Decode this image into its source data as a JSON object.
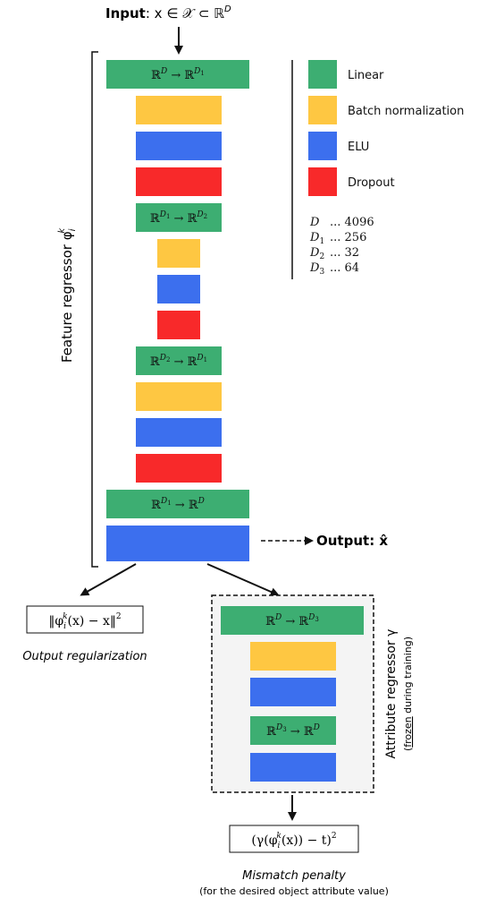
{
  "colors": {
    "linear": "#3DAE72",
    "batchnorm": "#FEC742",
    "elu": "#3C6FEE",
    "dropout": "#F8292A",
    "attribute_bg": "#F4F4F4"
  },
  "input": {
    "bold": "Input",
    "formula": ": x ∈ 𝒳 ⊂ ℝ",
    "sup": "D"
  },
  "feature_regressor": {
    "label": "Feature regressor φ",
    "sub": "i",
    "sup": "k"
  },
  "layers": {
    "l1": {
      "base": "ℝ",
      "sup1": "D",
      "arrow": " → ℝ",
      "sup2": "D",
      "sub2": "1"
    },
    "l2": {
      "base": "ℝ",
      "sup1": "D",
      "sub1": "1",
      "arrow": " → ℝ",
      "sup2": "D",
      "sub2": "2"
    },
    "l3": {
      "base": "ℝ",
      "sup1": "D",
      "sub1": "2",
      "arrow": " → ℝ",
      "sup2": "D",
      "sub2": "1"
    },
    "l4": {
      "base": "ℝ",
      "sup1": "D",
      "sub1": "1",
      "arrow": " → ℝ",
      "sup2": "D"
    },
    "a1": {
      "base": "ℝ",
      "sup1": "D",
      "arrow": " → ℝ",
      "sup2": "D",
      "sub2": "3"
    },
    "a2": {
      "base": "ℝ",
      "sup1": "D",
      "sub1": "3",
      "arrow": " → ℝ",
      "sup2": "D"
    }
  },
  "legend": [
    {
      "label": "Linear",
      "color": "linear"
    },
    {
      "label": "Batch normalization",
      "color": "batchnorm"
    },
    {
      "label": "ELU",
      "color": "elu"
    },
    {
      "label": "Dropout",
      "color": "dropout"
    }
  ],
  "dims": [
    {
      "name": "D",
      "sub": "",
      "value": "... 4096"
    },
    {
      "name": "D",
      "sub": "1",
      "value": "... 256"
    },
    {
      "name": "D",
      "sub": "2",
      "value": "... 32"
    },
    {
      "name": "D",
      "sub": "3",
      "value": "... 64"
    }
  ],
  "output": {
    "bold": "Output",
    "formula": ": x̂"
  },
  "regularization": {
    "formula_a": "‖φ",
    "sub": "i",
    "sup": "k",
    "formula_b": "(x) − x‖",
    "sup2": "2",
    "caption": "Output regularization"
  },
  "attribute_regressor": {
    "label": "Attribute regressor γ",
    "note_underlined": "frozen",
    "note_rest": " during training)",
    "note_open": "("
  },
  "mismatch": {
    "formula_a": "(γ(φ",
    "sub": "i",
    "sup": "k",
    "formula_b": "(x)) − t)",
    "sup2": "2",
    "caption": "Mismatch penalty",
    "caption2": "(for the desired object attribute value)"
  }
}
